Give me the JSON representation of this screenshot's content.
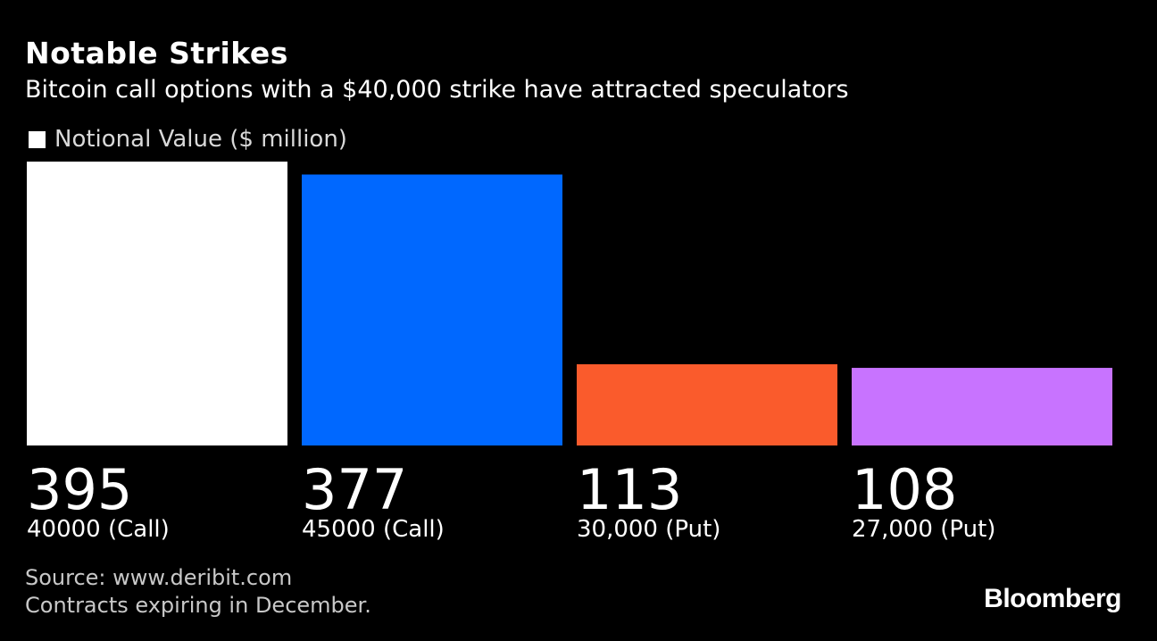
{
  "header": {
    "title": "Notable Strikes",
    "subtitle": "Bitcoin call options with a $40,000 strike have attracted speculators"
  },
  "legend": {
    "label": "Notional Value ($ million)",
    "swatch_color": "#ffffff"
  },
  "chart_data": {
    "type": "bar",
    "title": "Notable Strikes",
    "subtitle": "Bitcoin call options with a $40,000 strike have attracted speculators",
    "categories": [
      "40000 (Call)",
      "45000 (Call)",
      "30,000 (Put)",
      "27,000 (Put)"
    ],
    "series": [
      {
        "name": "Notional Value ($ million)",
        "values": [
          395,
          377,
          113,
          108
        ]
      }
    ],
    "value_labels": [
      "395",
      "377",
      "113",
      "108"
    ],
    "colors": [
      "#ffffff",
      "#0068ff",
      "#fa5b2c",
      "#c873ff"
    ],
    "ylim": [
      0,
      395
    ],
    "grid": false,
    "legend_position": "top-left"
  },
  "footer": {
    "source": "Source: www.deribit.com",
    "note": "Contracts expiring in December.",
    "brand": "Bloomberg"
  }
}
